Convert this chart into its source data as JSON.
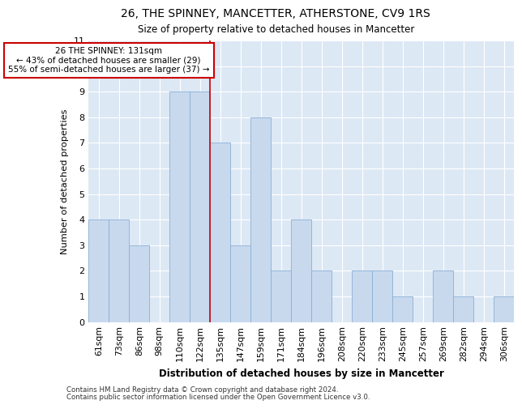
{
  "title1": "26, THE SPINNEY, MANCETTER, ATHERSTONE, CV9 1RS",
  "title2": "Size of property relative to detached houses in Mancetter",
  "xlabel": "Distribution of detached houses by size in Mancetter",
  "ylabel": "Number of detached properties",
  "categories": [
    "61sqm",
    "73sqm",
    "86sqm",
    "98sqm",
    "110sqm",
    "122sqm",
    "135sqm",
    "147sqm",
    "159sqm",
    "171sqm",
    "184sqm",
    "196sqm",
    "208sqm",
    "220sqm",
    "233sqm",
    "245sqm",
    "257sqm",
    "269sqm",
    "282sqm",
    "294sqm",
    "306sqm"
  ],
  "values": [
    4,
    4,
    3,
    0,
    9,
    9,
    7,
    3,
    8,
    2,
    4,
    2,
    0,
    2,
    2,
    1,
    0,
    2,
    1,
    0,
    1
  ],
  "bar_color": "#c8d9ee",
  "bar_edge_color": "#8aafd4",
  "plot_bg_color": "#dde8f5",
  "grid_color": "#ffffff",
  "red_line_x": 6,
  "red_line_color": "#cc0000",
  "annotation_line1": "26 THE SPINNEY: 131sqm",
  "annotation_line2": "← 43% of detached houses are smaller (29)",
  "annotation_line3": "55% of semi-detached houses are larger (37) →",
  "annotation_box_edgecolor": "#cc0000",
  "ylim": [
    0,
    11
  ],
  "yticks": [
    0,
    1,
    2,
    3,
    4,
    5,
    6,
    7,
    8,
    9,
    10,
    11
  ],
  "footer1": "Contains HM Land Registry data © Crown copyright and database right 2024.",
  "footer2": "Contains public sector information licensed under the Open Government Licence v3.0."
}
